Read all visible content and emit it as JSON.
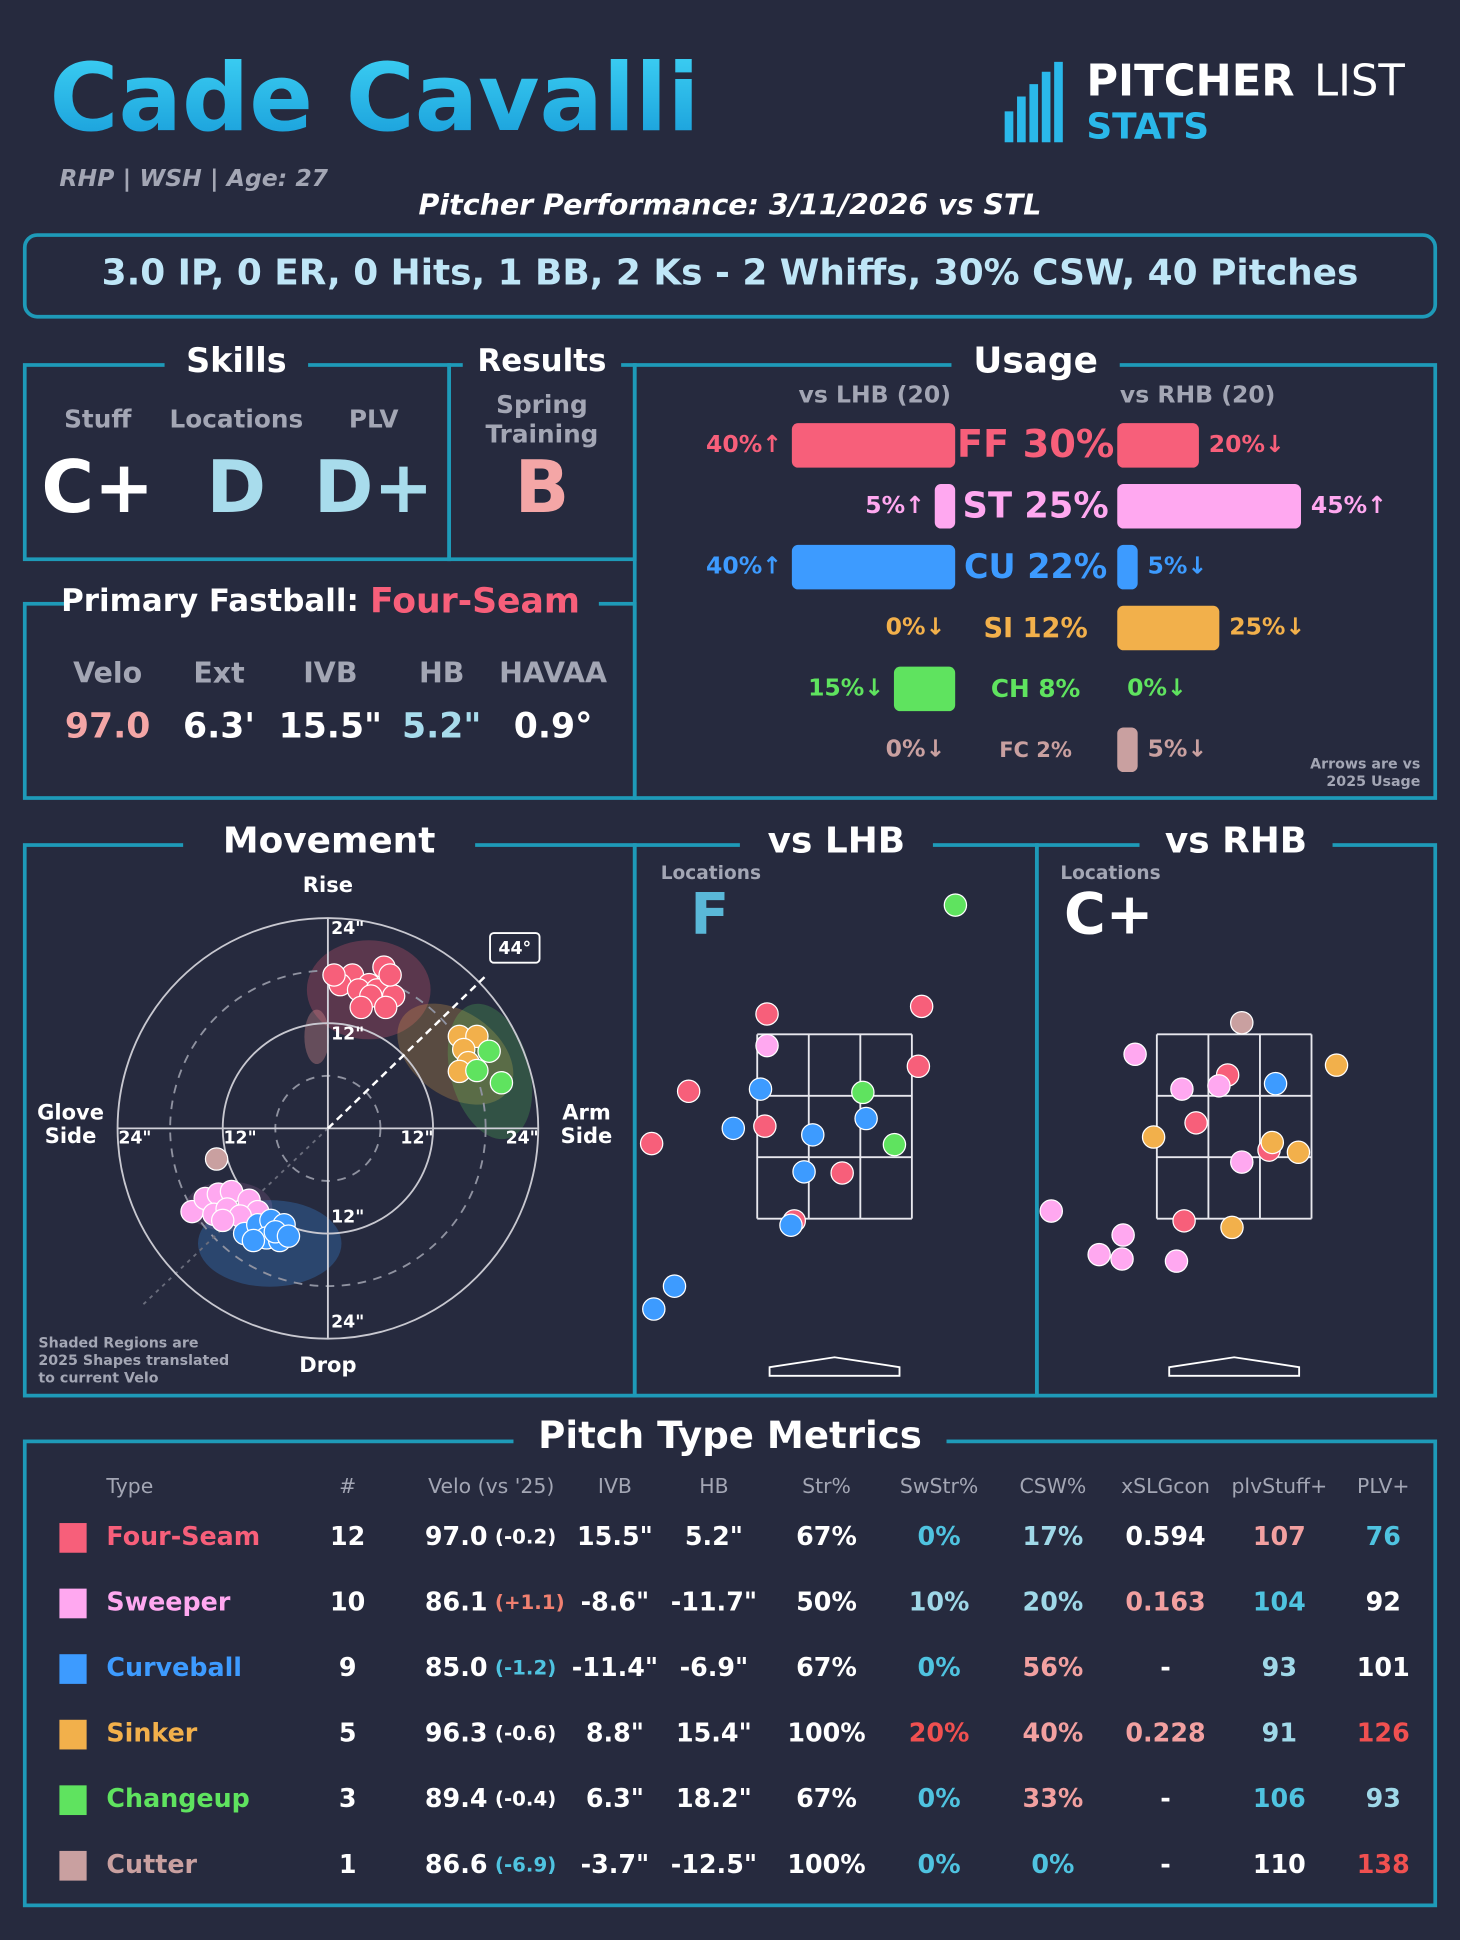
{
  "header": {
    "name": "Cade Cavalli",
    "info": "RHP | WSH | Age: 27",
    "logo": {
      "word1": "PITCHER",
      "word2": "LIST",
      "word3": "STATS"
    },
    "performance_title": "Pitcher Performance: 3/11/2026 vs STL"
  },
  "summary": "3.0 IP, 0 ER, 0 Hits, 1 BB, 2 Ks - 2 Whiffs, 30% CSW, 40 Pitches",
  "skills": {
    "title": "Skills",
    "items": [
      {
        "label": "Stuff",
        "grade": "C+",
        "color": "#ffffff"
      },
      {
        "label": "Locations",
        "grade": "D",
        "color": "#a8dcec"
      },
      {
        "label": "PLV",
        "grade": "D+",
        "color": "#a8dcec"
      }
    ]
  },
  "results": {
    "title": "Results",
    "label_lines": [
      "Spring",
      "Training"
    ],
    "grade": "B",
    "color": "#f4a6a6"
  },
  "fastball": {
    "title": "Primary Fastball:",
    "pitch": "Four-Seam",
    "pitch_color": "#f75f7a",
    "metrics": [
      {
        "label": "Velo",
        "value": "97.0",
        "color": "#f4a6a6"
      },
      {
        "label": "Ext",
        "value": "6.3'",
        "color": "#ffffff"
      },
      {
        "label": "IVB",
        "value": "15.5\"",
        "color": "#ffffff"
      },
      {
        "label": "HB",
        "value": "5.2\"",
        "color": "#a8dcec"
      },
      {
        "label": "HAVAA",
        "value": "0.9°",
        "color": "#ffffff"
      }
    ]
  },
  "usage": {
    "title": "Usage",
    "lhb_label": "vs LHB (20)",
    "rhb_label": "vs RHB (20)",
    "note_lines": [
      "Arrows are vs",
      "2025 Usage"
    ],
    "pitches": [
      {
        "overall": 30,
        "overall_label": "FF 30%",
        "lhb": 40,
        "lhb_label": "40%↑",
        "rhb": 20,
        "rhb_label": "20%↓",
        "color": "#f75f7a"
      },
      {
        "overall": 25,
        "overall_label": "ST 25%",
        "lhb": 5,
        "lhb_label": "5%↑",
        "rhb": 45,
        "rhb_label": "45%↑",
        "color": "#ffa8f0"
      },
      {
        "overall": 22,
        "overall_label": "CU 22%",
        "lhb": 40,
        "lhb_label": "40%↑",
        "rhb": 5,
        "rhb_label": "5%↓",
        "color": "#3d9bff"
      },
      {
        "overall": 12,
        "overall_label": "SI 12%",
        "lhb": 0,
        "lhb_label": "0%↓",
        "rhb": 25,
        "rhb_label": "25%↓",
        "color": "#f2b04b"
      },
      {
        "overall": 8,
        "overall_label": "CH 8%",
        "lhb": 15,
        "lhb_label": "15%↓",
        "rhb": 0,
        "rhb_label": "0%↓",
        "color": "#5fe35f"
      },
      {
        "overall": 2,
        "overall_label": "FC 2%",
        "lhb": 0,
        "lhb_label": "0%↓",
        "rhb": 5,
        "rhb_label": "5%↓",
        "color": "#c9a0a0"
      }
    ]
  },
  "movement": {
    "title": "Movement",
    "axis_labels": {
      "top": "Rise",
      "bottom": "Drop",
      "left_lines": [
        "Glove",
        "Side"
      ],
      "right_lines": [
        "Arm",
        "Side"
      ]
    },
    "ticks": [
      {
        "value": 12,
        "label": "12\""
      },
      {
        "value": 24,
        "label": "24\""
      }
    ],
    "arm_angle": {
      "value": 44,
      "label": "44°"
    },
    "note_lines": [
      "Shaded Regions are",
      "2025 Shapes translated",
      "to current Velo"
    ],
    "pitches": [
      {
        "hb": [
          2.8,
          4.7,
          6.4,
          1.4,
          3.5,
          5.6,
          7.5,
          4.9,
          6.6,
          3.8,
          0.7,
          7.1
        ],
        "ivb": [
          17.5,
          16.4,
          18.4,
          16.4,
          15.8,
          15.8,
          15.1,
          15.1,
          13.8,
          13.8,
          17.5,
          17.5
        ]
      },
      {
        "hb": [
          -15.5,
          -14,
          -12.5,
          -11,
          -13,
          -11.5,
          -9,
          -8,
          -10,
          -12
        ],
        "ivb": [
          -9.5,
          -8,
          -7.5,
          -7.2,
          -9.8,
          -9.2,
          -8.2,
          -9.5,
          -10,
          -10.5
        ]
      },
      {
        "hb": [
          -9.5,
          -8,
          -6.5,
          -5,
          -7,
          -5.5,
          -8.5,
          -6,
          -4.5
        ],
        "ivb": [
          -12,
          -11,
          -10.5,
          -11,
          -12.5,
          -12.8,
          -12.8,
          -11.8,
          -12.3
        ]
      },
      {
        "hb": [
          15,
          17,
          15.5,
          16,
          15
        ],
        "ivb": [
          10.5,
          10.5,
          9,
          7.5,
          6.5
        ]
      },
      {
        "hb": [
          18.4,
          19.8,
          17
        ],
        "ivb": [
          8.8,
          5.2,
          6.6
        ]
      },
      {
        "hb": [
          -12.7
        ],
        "ivb": [
          -3.5
        ]
      }
    ]
  },
  "locations": {
    "label": "Locations",
    "lhb": {
      "title": "vs LHB",
      "grade": "F",
      "grade_color": "#5ab8d8",
      "pitches": [
        {
          "x": [
            -0.62,
            0.8,
            0.77,
            -1.34,
            -0.64,
            0.07,
            -0.37,
            -1.68
          ],
          "z": [
            3.48,
            3.55,
            3.0,
            2.77,
            2.45,
            2.02,
            1.58,
            2.29
          ]
        },
        {
          "x": [
            -0.62
          ],
          "z": [
            3.19
          ]
        },
        {
          "x": [
            -0.68,
            -0.93,
            -0.2,
            0.29,
            -0.28,
            -0.4,
            -1.47,
            -1.66
          ],
          "z": [
            2.79,
            2.43,
            2.37,
            2.52,
            2.03,
            1.54,
            0.98,
            0.77
          ]
        },
        {
          "x": [],
          "z": []
        },
        {
          "x": [
            1.11,
            0.26,
            0.55
          ],
          "z": [
            4.48,
            2.76,
            2.28
          ]
        },
        {
          "x": [],
          "z": []
        }
      ]
    },
    "rhb": {
      "title": "vs RHB",
      "grade": "C+",
      "grade_color": "#ffffff",
      "pitches": [
        {
          "x": [
            -0.06,
            -0.35,
            0.32,
            -0.46
          ],
          "z": [
            2.92,
            2.48,
            2.23,
            1.58
          ]
        },
        {
          "x": [
            -0.91,
            -0.48,
            -0.14,
            0.07,
            -1.24,
            -1.02,
            -1.03,
            -0.53,
            -1.68
          ],
          "z": [
            3.11,
            2.79,
            2.82,
            2.12,
            1.27,
            1.45,
            1.23,
            1.21,
            1.67
          ]
        },
        {
          "x": [
            0.38
          ],
          "z": [
            2.84
          ]
        },
        {
          "x": [
            0.94,
            -0.74,
            0.35,
            0.59,
            -0.02
          ],
          "z": [
            3.01,
            2.35,
            2.3,
            2.21,
            1.52
          ]
        },
        {
          "x": [],
          "z": []
        },
        {
          "x": [
            0.07
          ],
          "z": [
            3.4
          ]
        }
      ]
    }
  },
  "table": {
    "title": "Pitch Type Metrics",
    "columns": [
      "Type",
      "#",
      "Velo (vs '25)",
      "IVB",
      "HB",
      "Str%",
      "SwStr%",
      "CSW%",
      "xSLGcon",
      "plvStuff+",
      "PLV+"
    ],
    "rows": [
      {
        "cells": [
          "Four-Seam",
          "12",
          "97.0",
          "(-0.2)",
          "15.5\"",
          "5.2\"",
          "67%",
          "0%",
          "17%",
          "0.594",
          "107",
          "76"
        ],
        "colors": [
          "#f75f7a",
          "#ffffff",
          "#ffffff",
          "#ffffff",
          "#ffffff",
          "#ffffff",
          "#ffffff",
          "#4fc3e0",
          "#9fd8e8",
          "#ffffff",
          "#f2a0a0",
          "#4fc3e0"
        ]
      },
      {
        "cells": [
          "Sweeper",
          "10",
          "86.1",
          "(+1.1)",
          "-8.6\"",
          "-11.7\"",
          "50%",
          "10%",
          "20%",
          "0.163",
          "104",
          "92"
        ],
        "colors": [
          "#ffa8f0",
          "#ffffff",
          "#ffffff",
          "#f08070",
          "#ffffff",
          "#ffffff",
          "#ffffff",
          "#9fd8e8",
          "#9fd8e8",
          "#f2a0a0",
          "#4fc3e0",
          "#ffffff"
        ]
      },
      {
        "cells": [
          "Curveball",
          "9",
          "85.0",
          "(-1.2)",
          "-11.4\"",
          "-6.9\"",
          "67%",
          "0%",
          "56%",
          "-",
          "93",
          "101"
        ],
        "colors": [
          "#3d9bff",
          "#ffffff",
          "#ffffff",
          "#4fc3e0",
          "#ffffff",
          "#ffffff",
          "#ffffff",
          "#4fc3e0",
          "#f2a0a0",
          "#ffffff",
          "#9fd8e8",
          "#ffffff"
        ]
      },
      {
        "cells": [
          "Sinker",
          "5",
          "96.3",
          "(-0.6)",
          "8.8\"",
          "15.4\"",
          "100%",
          "20%",
          "40%",
          "0.228",
          "91",
          "126"
        ],
        "colors": [
          "#f2b04b",
          "#ffffff",
          "#ffffff",
          "#ffffff",
          "#ffffff",
          "#ffffff",
          "#ffffff",
          "#f05050",
          "#f2a0a0",
          "#f2a0a0",
          "#9fd8e8",
          "#f05050"
        ]
      },
      {
        "cells": [
          "Changeup",
          "3",
          "89.4",
          "(-0.4)",
          "6.3\"",
          "18.2\"",
          "67%",
          "0%",
          "33%",
          "-",
          "106",
          "93"
        ],
        "colors": [
          "#5fe35f",
          "#ffffff",
          "#ffffff",
          "#ffffff",
          "#ffffff",
          "#ffffff",
          "#ffffff",
          "#4fc3e0",
          "#f2a0a0",
          "#ffffff",
          "#4fc3e0",
          "#9fd8e8"
        ]
      },
      {
        "cells": [
          "Cutter",
          "1",
          "86.6",
          "(-6.9)",
          "-3.7\"",
          "-12.5\"",
          "100%",
          "0%",
          "0%",
          "-",
          "110",
          "138"
        ],
        "colors": [
          "#c9a0a0",
          "#ffffff",
          "#ffffff",
          "#4fc3e0",
          "#ffffff",
          "#ffffff",
          "#ffffff",
          "#4fc3e0",
          "#4fc3e0",
          "#ffffff",
          "#ffffff",
          "#f05050"
        ]
      }
    ]
  }
}
